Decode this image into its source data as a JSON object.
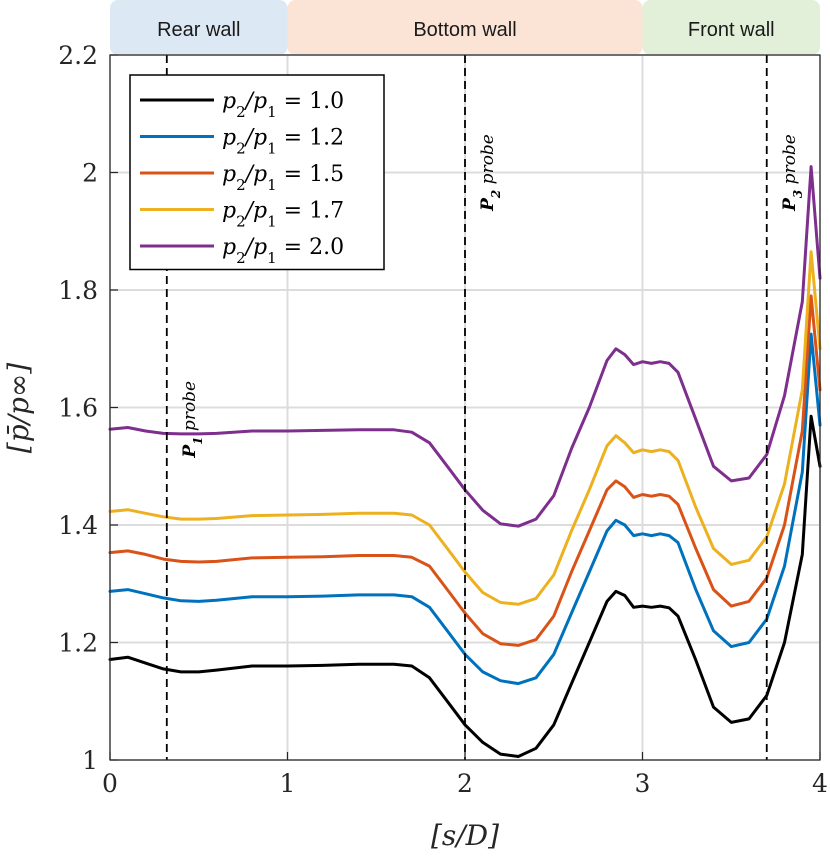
{
  "chart_data": {
    "type": "line",
    "xlabel": "[s/D]",
    "ylabel": "[p̄/p∞]",
    "xlim": [
      0,
      4
    ],
    "ylim": [
      1,
      2.2
    ],
    "x_ticks": [
      0,
      1,
      2,
      3,
      4
    ],
    "x_tick_labels": [
      "0",
      "1",
      "2",
      "3",
      "4"
    ],
    "y_ticks": [
      1,
      1.2,
      1.4,
      1.6,
      1.8,
      2,
      2.2
    ],
    "y_tick_labels": [
      "1",
      "1.2",
      "1.4",
      "1.6",
      "1.8",
      "2",
      "2.2"
    ],
    "grid": true,
    "regions": [
      {
        "label": "Rear wall",
        "x_start": 0,
        "x_end": 1,
        "color": "#dce9f5"
      },
      {
        "label": "Bottom wall",
        "x_start": 1,
        "x_end": 3,
        "color": "#fbe3d6"
      },
      {
        "label": "Front wall",
        "x_start": 3,
        "x_end": 4,
        "color": "#e2f0d9"
      }
    ],
    "probes": [
      {
        "name": "P",
        "sub": "1",
        "suffix": " probe",
        "x": 0.32
      },
      {
        "name": "P",
        "sub": "2",
        "suffix": " probe",
        "x": 2.0
      },
      {
        "name": "P",
        "sub": "3",
        "suffix": " probe",
        "x": 3.7
      }
    ],
    "legend": {
      "position": "top-left"
    },
    "x": [
      0,
      0.1,
      0.2,
      0.3,
      0.4,
      0.5,
      0.6,
      0.8,
      1.0,
      1.2,
      1.4,
      1.6,
      1.7,
      1.8,
      1.9,
      2.0,
      2.1,
      2.2,
      2.3,
      2.4,
      2.5,
      2.6,
      2.7,
      2.8,
      2.85,
      2.9,
      2.95,
      3.0,
      3.05,
      3.1,
      3.15,
      3.2,
      3.3,
      3.4,
      3.5,
      3.6,
      3.7,
      3.8,
      3.9,
      3.95,
      4.0
    ],
    "series": [
      {
        "name": "p2/p1 = 1.0",
        "label_parts": [
          "p",
          "2",
          "/p",
          "1",
          " = 1.0"
        ],
        "color": "#000000",
        "values": [
          1.171,
          1.175,
          1.165,
          1.155,
          1.15,
          1.15,
          1.153,
          1.16,
          1.16,
          1.161,
          1.163,
          1.163,
          1.16,
          1.14,
          1.1,
          1.06,
          1.03,
          1.01,
          1.006,
          1.02,
          1.06,
          1.13,
          1.2,
          1.27,
          1.287,
          1.28,
          1.26,
          1.262,
          1.26,
          1.262,
          1.259,
          1.245,
          1.17,
          1.09,
          1.064,
          1.07,
          1.11,
          1.2,
          1.35,
          1.585,
          1.5
        ]
      },
      {
        "name": "p2/p1 = 1.2",
        "label_parts": [
          "p",
          "2",
          "/p",
          "1",
          " = 1.2"
        ],
        "color": "#0072bd",
        "values": [
          1.287,
          1.29,
          1.283,
          1.276,
          1.271,
          1.27,
          1.272,
          1.278,
          1.278,
          1.279,
          1.281,
          1.281,
          1.278,
          1.26,
          1.22,
          1.18,
          1.15,
          1.135,
          1.13,
          1.14,
          1.18,
          1.25,
          1.32,
          1.39,
          1.408,
          1.4,
          1.382,
          1.385,
          1.382,
          1.385,
          1.382,
          1.37,
          1.29,
          1.22,
          1.193,
          1.2,
          1.24,
          1.33,
          1.49,
          1.725,
          1.57
        ]
      },
      {
        "name": "p2/p1 = 1.5",
        "label_parts": [
          "p",
          "2",
          "/p",
          "1",
          " = 1.5"
        ],
        "color": "#d95319",
        "values": [
          1.353,
          1.356,
          1.35,
          1.342,
          1.338,
          1.337,
          1.338,
          1.344,
          1.345,
          1.346,
          1.348,
          1.348,
          1.345,
          1.33,
          1.29,
          1.25,
          1.215,
          1.198,
          1.195,
          1.205,
          1.245,
          1.32,
          1.39,
          1.46,
          1.475,
          1.465,
          1.447,
          1.452,
          1.449,
          1.452,
          1.449,
          1.435,
          1.36,
          1.29,
          1.262,
          1.27,
          1.31,
          1.4,
          1.56,
          1.79,
          1.63
        ]
      },
      {
        "name": "p2/p1 = 1.7",
        "label_parts": [
          "p",
          "2",
          "/p",
          "1",
          " = 1.7"
        ],
        "color": "#edb120",
        "values": [
          1.423,
          1.426,
          1.42,
          1.414,
          1.41,
          1.41,
          1.411,
          1.416,
          1.417,
          1.418,
          1.42,
          1.42,
          1.417,
          1.4,
          1.36,
          1.32,
          1.285,
          1.268,
          1.265,
          1.275,
          1.315,
          1.39,
          1.46,
          1.535,
          1.552,
          1.54,
          1.523,
          1.528,
          1.525,
          1.528,
          1.525,
          1.51,
          1.43,
          1.36,
          1.333,
          1.34,
          1.38,
          1.47,
          1.63,
          1.865,
          1.7
        ]
      },
      {
        "name": "p2/p1 = 2.0",
        "label_parts": [
          "p",
          "2",
          "/p",
          "1",
          " = 2.0"
        ],
        "color": "#7e2f8e",
        "values": [
          1.563,
          1.566,
          1.56,
          1.556,
          1.555,
          1.555,
          1.556,
          1.56,
          1.56,
          1.561,
          1.562,
          1.562,
          1.558,
          1.54,
          1.5,
          1.46,
          1.425,
          1.402,
          1.398,
          1.41,
          1.45,
          1.53,
          1.6,
          1.68,
          1.7,
          1.69,
          1.673,
          1.678,
          1.675,
          1.678,
          1.675,
          1.66,
          1.58,
          1.5,
          1.475,
          1.48,
          1.52,
          1.62,
          1.78,
          2.01,
          1.82
        ]
      }
    ]
  }
}
